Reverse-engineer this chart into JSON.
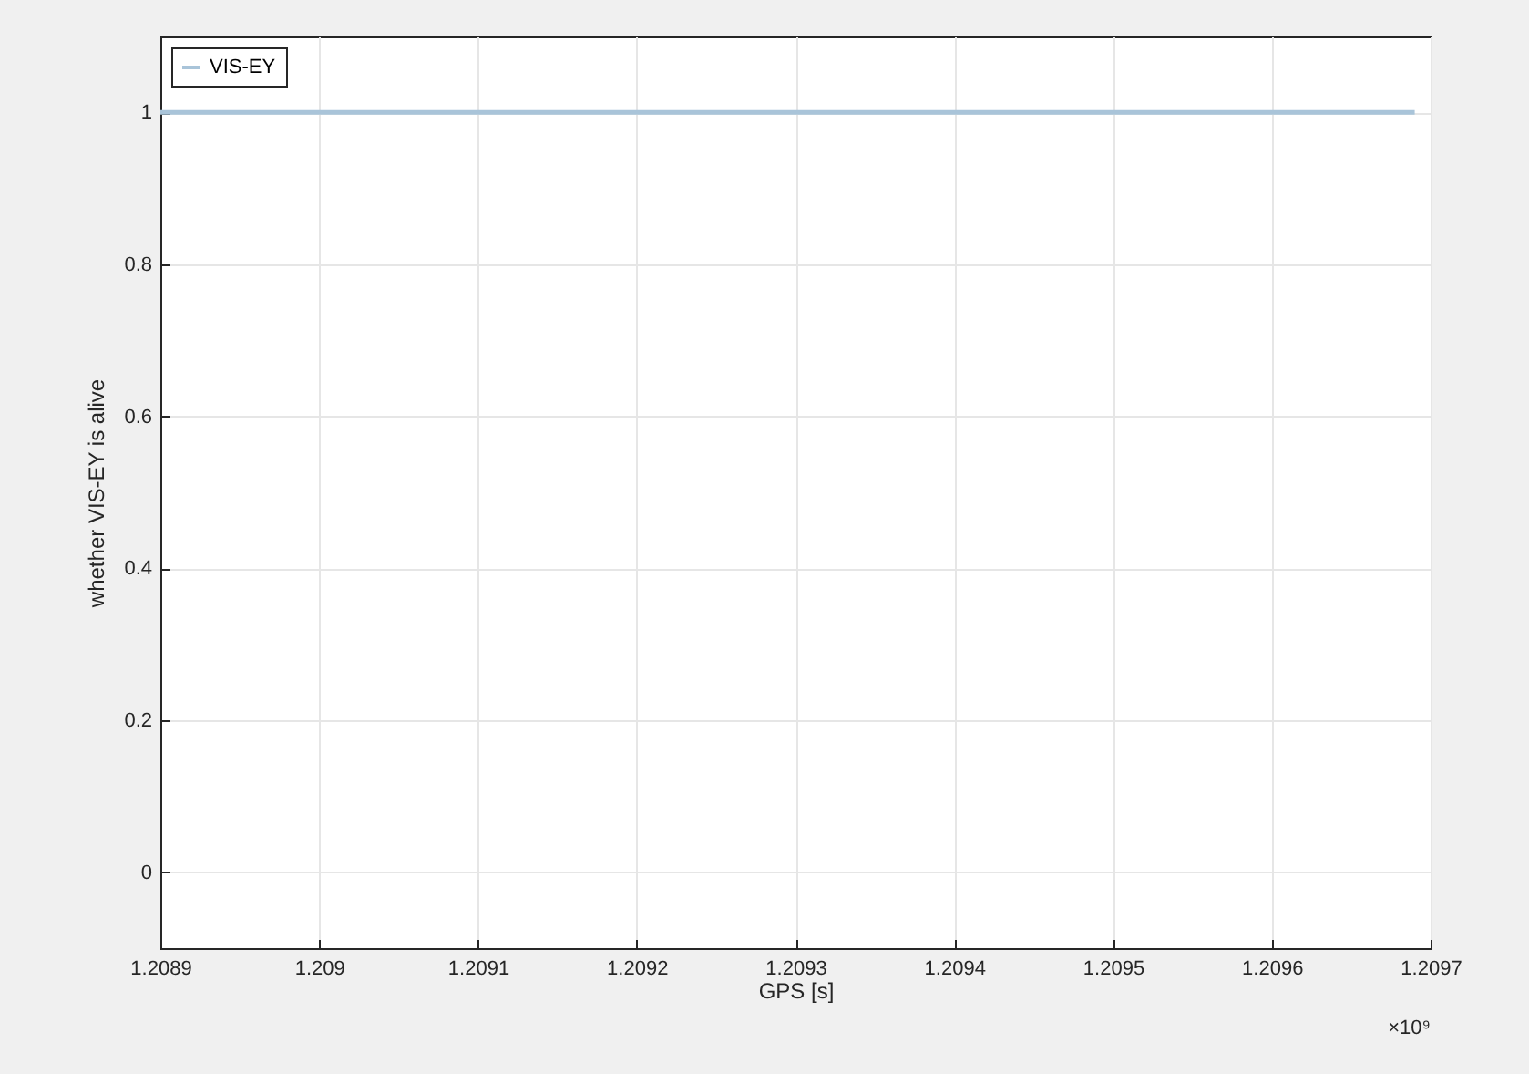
{
  "chart_data": {
    "type": "line",
    "xlabel": "GPS [s]",
    "ylabel": "whether VIS-EY is alive",
    "x": [
      1.2089,
      1.20969
    ],
    "series": [
      {
        "name": "VIS-EY",
        "color": "#a9c4d9",
        "values": [
          1,
          1
        ]
      }
    ],
    "xlim": [
      1.2089,
      1.2097
    ],
    "xticks": [
      1.2089,
      1.209,
      1.2091,
      1.2092,
      1.2093,
      1.2094,
      1.2095,
      1.2096,
      1.2097
    ],
    "ylim": [
      -0.1,
      1.1
    ],
    "yticks": [
      0,
      0.2,
      0.4,
      0.6,
      0.8,
      1
    ],
    "grid": true,
    "legend": "top left",
    "annotations": [
      "×10⁹"
    ]
  }
}
